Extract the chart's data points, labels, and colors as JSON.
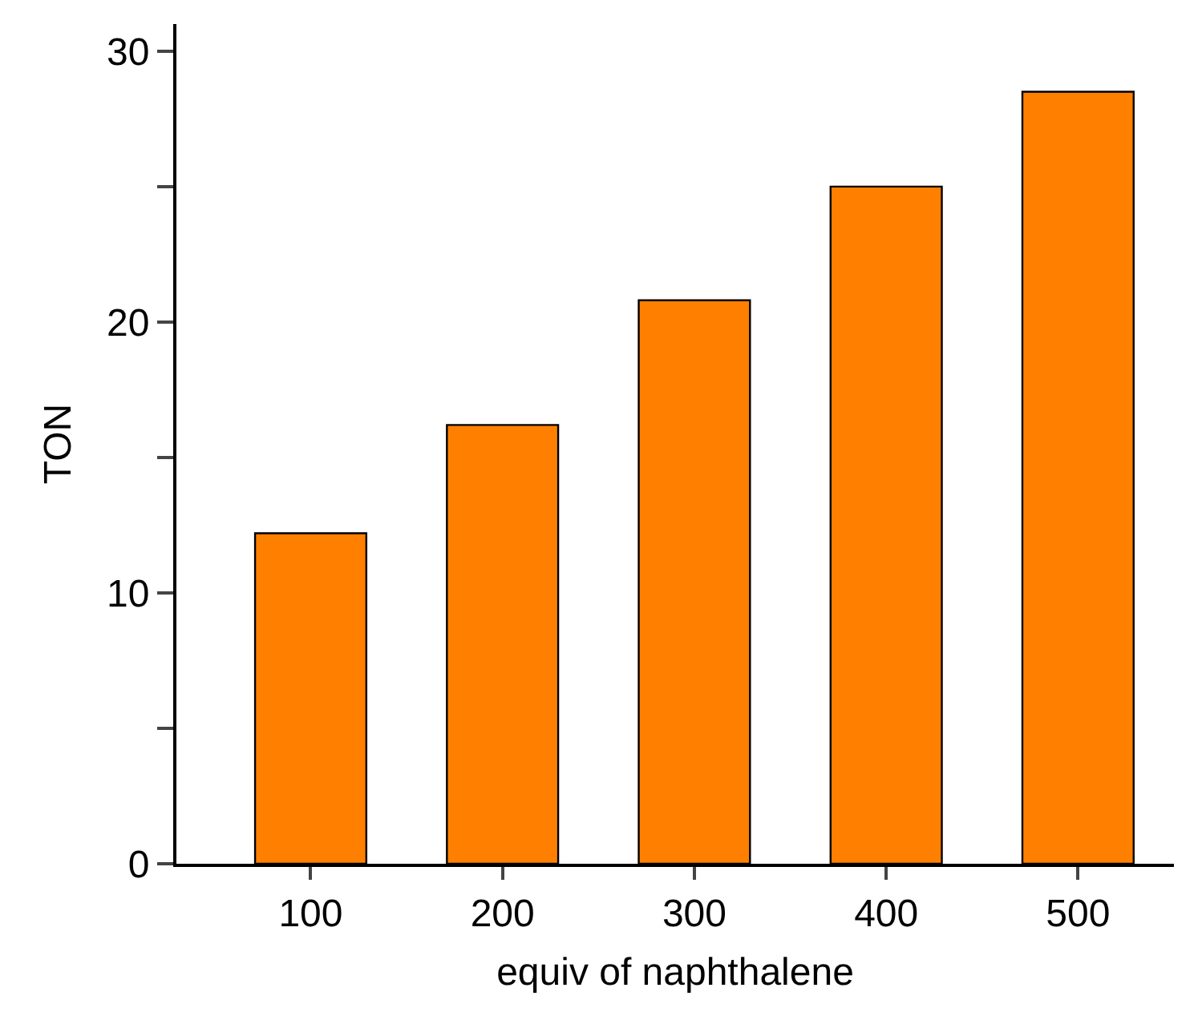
{
  "chart_data": {
    "type": "bar",
    "xlabel": "equiv of naphthalene",
    "ylabel": "TON",
    "categories": [
      "100",
      "200",
      "300",
      "400",
      "500"
    ],
    "values": [
      12.2,
      16.2,
      20.8,
      25.0,
      28.5
    ],
    "color": "#ff8000",
    "ylim": [
      0,
      31
    ],
    "yticks": [
      0,
      {
        "value": 5,
        "label": null
      },
      10,
      {
        "value": 15,
        "label": null
      },
      20,
      {
        "value": 25,
        "label": null
      },
      30
    ]
  }
}
